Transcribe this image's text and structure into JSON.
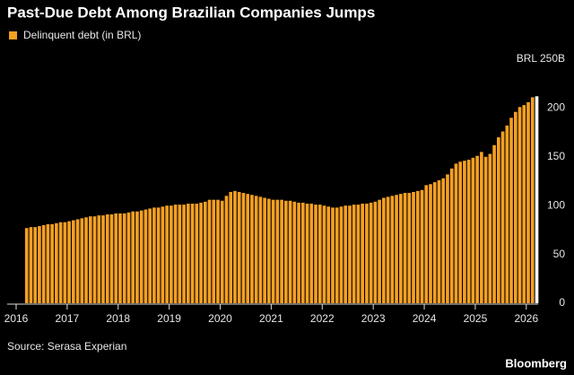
{
  "chart_data": {
    "type": "bar",
    "title": "Past-Due Debt Among Brazilian Companies Jumps",
    "source": "Source: Serasa Experian",
    "brand": "Bloomberg",
    "categories": [
      "2016",
      null,
      null,
      null,
      null,
      null,
      null,
      null,
      null,
      null,
      null,
      null,
      "2017",
      null,
      null,
      null,
      null,
      null,
      null,
      null,
      null,
      null,
      null,
      null,
      "2018",
      null,
      null,
      null,
      null,
      null,
      null,
      null,
      null,
      null,
      null,
      null,
      "2019",
      null,
      null,
      null,
      null,
      null,
      null,
      null,
      null,
      null,
      null,
      null,
      "2020",
      null,
      null,
      null,
      null,
      null,
      null,
      null,
      null,
      null,
      null,
      null,
      "2021",
      null,
      null,
      null,
      null,
      null,
      null,
      null,
      null,
      null,
      null,
      null,
      "2022",
      null,
      null,
      null,
      null,
      null,
      null,
      null,
      null,
      null,
      null,
      null,
      "2023",
      null,
      null,
      null,
      null,
      null,
      null,
      null,
      null,
      null,
      null,
      null,
      "2024",
      null,
      null,
      null,
      null,
      null,
      null,
      null,
      null,
      null,
      null,
      null,
      "2025",
      null,
      null,
      null,
      null,
      null,
      null,
      null,
      null,
      null,
      null,
      null,
      "2026",
      null,
      null
    ],
    "series": [
      {
        "name": "Delinquent debt (in BRL)",
        "color": "#f5a023",
        "latest_color": "#ffffff",
        "values": [
          null,
          null,
          77,
          78,
          78,
          79,
          80,
          81,
          81,
          82,
          83,
          83,
          84,
          85,
          86,
          87,
          88,
          89,
          89,
          90,
          90,
          91,
          91,
          92,
          92,
          92,
          93,
          94,
          94,
          95,
          96,
          97,
          98,
          98,
          99,
          100,
          100,
          101,
          101,
          101,
          102,
          102,
          102,
          103,
          104,
          106,
          106,
          106,
          105,
          110,
          114,
          115,
          114,
          113,
          112,
          111,
          110,
          109,
          108,
          107,
          106,
          106,
          106,
          105,
          105,
          104,
          103,
          103,
          102,
          102,
          101,
          101,
          100,
          99,
          98,
          98,
          99,
          100,
          100,
          101,
          101,
          102,
          102,
          103,
          104,
          106,
          108,
          109,
          110,
          111,
          112,
          113,
          113,
          114,
          115,
          116,
          121,
          122,
          124,
          126,
          128,
          132,
          138,
          143,
          145,
          146,
          147,
          149,
          151,
          155,
          150,
          153,
          162,
          170,
          176,
          182,
          190,
          196,
          201,
          203,
          206,
          211,
          212
        ]
      }
    ],
    "ylim": [
      0,
      250
    ],
    "yticks": [
      0,
      50,
      100,
      150,
      200,
      {
        "value": 250,
        "label": "BRL 250B"
      }
    ],
    "grid": false
  }
}
